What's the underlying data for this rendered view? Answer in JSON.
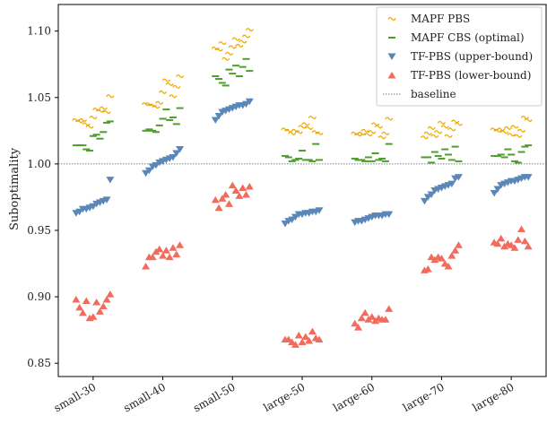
{
  "chart_data": {
    "type": "scatter",
    "ylabel": "Suboptimality",
    "xlabel": "",
    "ylim": [
      0.84,
      1.12
    ],
    "yticks": [
      "0.85",
      "0.90",
      "0.95",
      "1.00",
      "1.05",
      "1.10"
    ],
    "ytick_values": [
      0.85,
      0.9,
      0.95,
      1.0,
      1.05,
      1.1
    ],
    "categories": [
      "small-30",
      "small-40",
      "small-50",
      "large-50",
      "large-60",
      "large-70",
      "large-80"
    ],
    "legend_position": "top-right",
    "grid": false,
    "baseline": {
      "name": "baseline",
      "value": 1.0,
      "color": "#555555"
    },
    "series": [
      {
        "name": "MAPF PBS",
        "marker": "tilde",
        "color": "#f2a900",
        "values": [
          [
            1.033,
            1.032,
            1.033,
            1.03,
            1.028,
            1.035,
            1.041,
            1.04,
            1.042,
            1.039,
            1.051
          ],
          [
            1.045,
            1.045,
            1.044,
            1.043,
            1.046,
            1.054,
            1.063,
            1.06,
            1.051,
            1.058,
            1.066
          ],
          [
            1.087,
            1.086,
            1.091,
            1.079,
            1.083,
            1.088,
            1.094,
            1.089,
            1.092,
            1.096,
            1.101
          ],
          [
            1.026,
            1.025,
            1.023,
            1.025,
            1.024,
            1.028,
            1.03,
            1.027,
            1.035,
            1.024,
            1.023
          ],
          [
            1.023,
            1.022,
            1.023,
            1.025,
            1.022,
            1.024,
            1.03,
            1.028,
            1.02,
            1.023,
            1.034
          ],
          [
            1.02,
            1.023,
            1.027,
            1.021,
            1.024,
            1.031,
            1.028,
            1.021,
            1.026,
            1.032,
            1.03
          ],
          [
            1.026,
            1.025,
            1.026,
            1.024,
            1.027,
            1.022,
            1.028,
            1.021,
            1.025,
            1.035,
            1.033
          ]
        ]
      },
      {
        "name": "MAPF CBS (optimal)",
        "marker": "dash",
        "color": "#4f9e2d",
        "values": [
          [
            1.014,
            1.014,
            1.014,
            1.011,
            1.01,
            1.021,
            1.022,
            1.019,
            1.024,
            1.031,
            1.032
          ],
          [
            1.025,
            1.026,
            1.025,
            1.024,
            1.029,
            1.034,
            1.041,
            1.033,
            1.035,
            1.03,
            1.042
          ],
          [
            1.066,
            1.064,
            1.061,
            1.059,
            1.071,
            1.068,
            1.074,
            1.066,
            1.073,
            1.079,
            1.07
          ],
          [
            1.006,
            1.005,
            1.002,
            1.003,
            1.004,
            1.01,
            1.003,
            1.003,
            1.002,
            1.015,
            1.003
          ],
          [
            1.004,
            1.003,
            1.003,
            1.002,
            1.005,
            1.002,
            1.008,
            1.003,
            1.004,
            1.002,
            1.015
          ],
          [
            1.005,
            1.005,
            1.001,
            1.009,
            1.006,
            1.004,
            1.011,
            1.007,
            1.003,
            1.013,
            1.002
          ],
          [
            1.006,
            1.006,
            1.007,
            1.005,
            1.011,
            1.007,
            1.002,
            1.001,
            1.009,
            1.013,
            1.014
          ]
        ]
      },
      {
        "name": "TF-PBS (upper-bound)",
        "marker": "triangle-down",
        "color": "#5b87b8",
        "values": [
          [
            0.963,
            0.964,
            0.966,
            0.966,
            0.967,
            0.968,
            0.97,
            0.971,
            0.972,
            0.973,
            0.988
          ],
          [
            0.993,
            0.995,
            0.998,
            0.999,
            1.001,
            1.002,
            1.003,
            1.004,
            1.005,
            1.008,
            1.011
          ],
          [
            1.033,
            1.036,
            1.039,
            1.04,
            1.041,
            1.042,
            1.043,
            1.044,
            1.044,
            1.045,
            1.047
          ],
          [
            0.955,
            0.957,
            0.958,
            0.96,
            0.962,
            0.962,
            0.963,
            0.963,
            0.964,
            0.964,
            0.965
          ],
          [
            0.956,
            0.957,
            0.957,
            0.958,
            0.959,
            0.96,
            0.961,
            0.961,
            0.961,
            0.962,
            0.962
          ],
          [
            0.972,
            0.975,
            0.977,
            0.98,
            0.981,
            0.982,
            0.983,
            0.984,
            0.985,
            0.989,
            0.99
          ],
          [
            0.978,
            0.981,
            0.984,
            0.985,
            0.986,
            0.987,
            0.987,
            0.988,
            0.989,
            0.99,
            0.99
          ]
        ]
      },
      {
        "name": "TF-PBS (lower-bound)",
        "marker": "triangle-up",
        "color": "#f26b5b",
        "values": [
          [
            0.898,
            0.892,
            0.888,
            0.897,
            0.884,
            0.885,
            0.896,
            0.889,
            0.893,
            0.898,
            0.902
          ],
          [
            0.923,
            0.93,
            0.93,
            0.934,
            0.936,
            0.931,
            0.935,
            0.93,
            0.937,
            0.932,
            0.939
          ],
          [
            0.973,
            0.967,
            0.974,
            0.977,
            0.97,
            0.984,
            0.98,
            0.976,
            0.982,
            0.977,
            0.983
          ],
          [
            0.868,
            0.868,
            0.866,
            0.864,
            0.871,
            0.866,
            0.87,
            0.867,
            0.874,
            0.869,
            0.868
          ],
          [
            0.88,
            0.877,
            0.884,
            0.888,
            0.883,
            0.885,
            0.882,
            0.884,
            0.883,
            0.883,
            0.891
          ],
          [
            0.92,
            0.921,
            0.93,
            0.928,
            0.93,
            0.929,
            0.925,
            0.923,
            0.931,
            0.935,
            0.939
          ],
          [
            0.941,
            0.94,
            0.944,
            0.938,
            0.94,
            0.939,
            0.937,
            0.943,
            0.951,
            0.942,
            0.938
          ]
        ]
      }
    ]
  }
}
